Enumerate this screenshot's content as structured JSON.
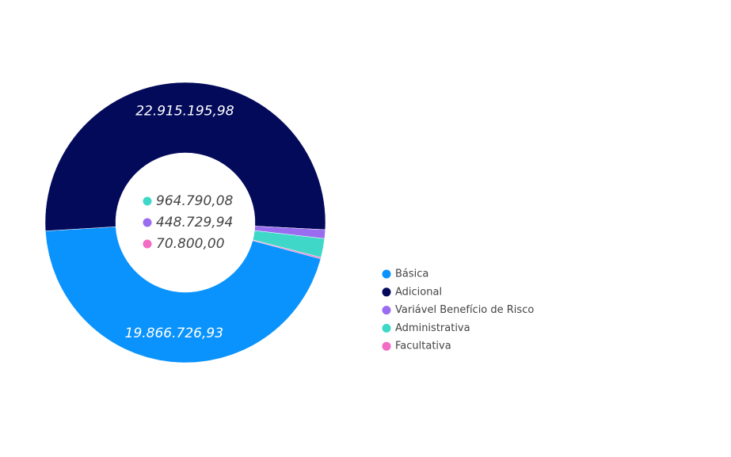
{
  "chart_data": {
    "type": "pie",
    "hole": true,
    "categories": [
      "Básica",
      "Adicional",
      "Variável Benefício de Risco",
      "Administrativa",
      "Facultativa"
    ],
    "values": [
      19866726.93,
      22915195.98,
      448729.94,
      964790.08,
      70800.0
    ],
    "value_labels": [
      "19.866.726,93",
      "22.915.195,98",
      "448.729,94",
      "964.790,08",
      "70.800,00"
    ],
    "colors": [
      "#0a93fc",
      "#030a5a",
      "#9a6cf0",
      "#3fd8c8",
      "#f26bc4"
    ],
    "legend": "right"
  }
}
